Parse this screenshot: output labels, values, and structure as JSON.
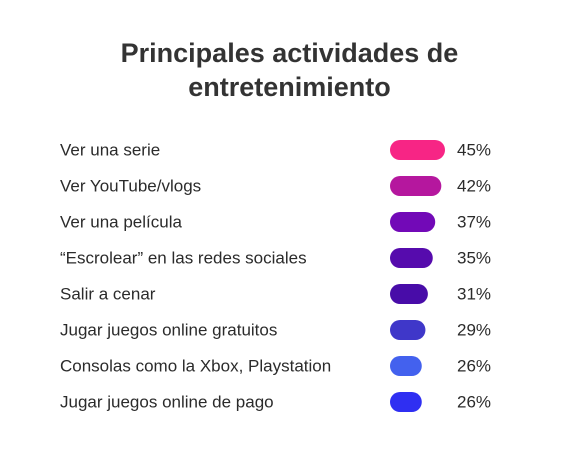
{
  "chart_data": {
    "type": "bar",
    "title_line1": "Principales actividades de",
    "title_line2": "entretenimiento",
    "categories": [
      "Ver una serie",
      "Ver YouTube/vlogs",
      "Ver una película",
      "“Escrolear” en las redes sociales",
      "Salir a cenar",
      "Jugar juegos online gratuitos",
      "Consolas como la Xbox, Playstation",
      "Jugar juegos online de pago"
    ],
    "values": [
      45,
      42,
      37,
      35,
      31,
      29,
      26,
      26
    ],
    "value_labels": [
      "45%",
      "42%",
      "37%",
      "35%",
      "31%",
      "29%",
      "26%",
      "26%"
    ],
    "colors": [
      "#f72585",
      "#b5179e",
      "#7209b7",
      "#560bad",
      "#480ca8",
      "#3f37c9",
      "#4361ee",
      "#2f2ff2"
    ],
    "orientation": "horizontal",
    "grid": false,
    "legend": "none"
  }
}
